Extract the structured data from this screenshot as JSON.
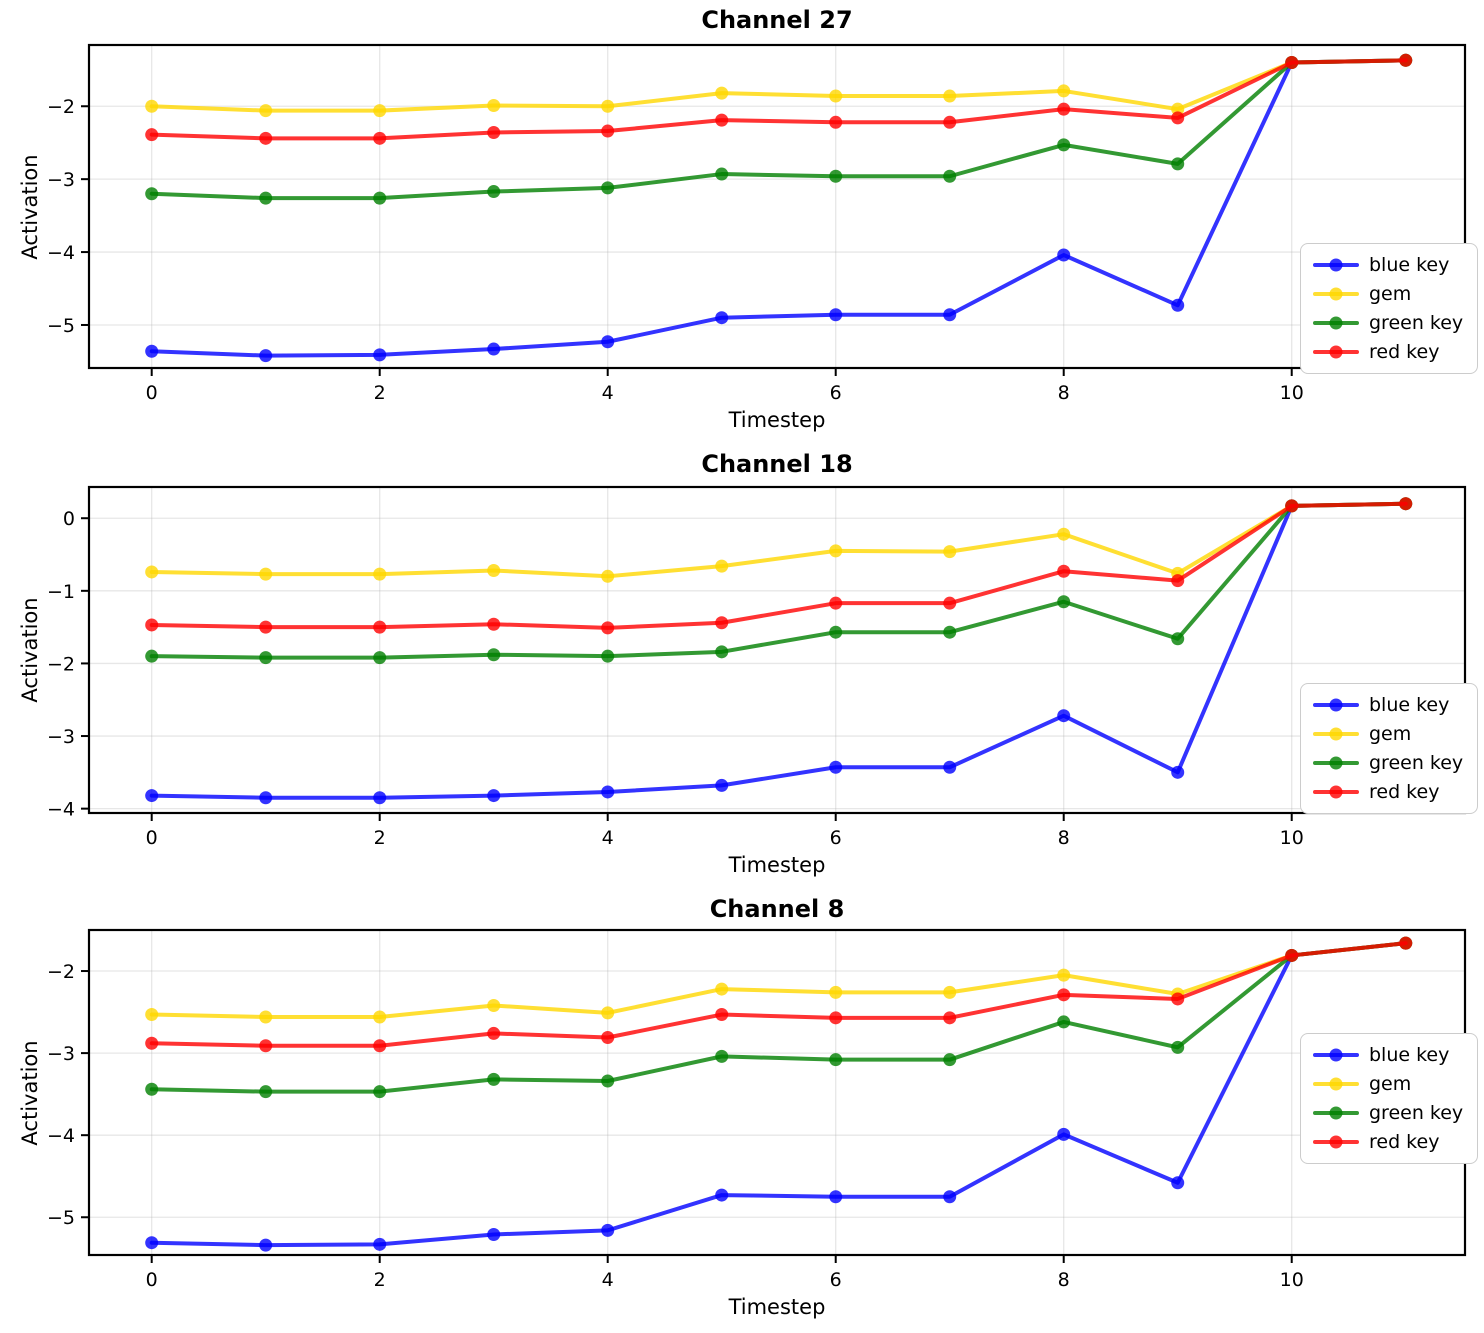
{
  "figure": {
    "background": "#ffffff",
    "text_color": "#000000",
    "grid_color": "#b0b0b0",
    "spine_color": "#000000"
  },
  "chart_data": [
    {
      "type": "line",
      "title": "Channel 27",
      "xlabel": "Timestep",
      "ylabel": "Activation",
      "x": [
        0,
        1,
        2,
        3,
        4,
        5,
        6,
        7,
        8,
        9,
        10,
        11
      ],
      "series": [
        {
          "name": "blue key",
          "color": "#0000ff",
          "values": [
            -5.36,
            -5.42,
            -5.41,
            -5.33,
            -5.23,
            -4.9,
            -4.86,
            -4.86,
            -4.04,
            -4.73,
            -1.4,
            -1.37
          ]
        },
        {
          "name": "gem",
          "color": "#ffd700",
          "values": [
            -2.0,
            -2.06,
            -2.06,
            -1.99,
            -2.0,
            -1.82,
            -1.86,
            -1.86,
            -1.79,
            -2.04,
            -1.4,
            -1.37
          ]
        },
        {
          "name": "green key",
          "color": "#008000",
          "values": [
            -3.2,
            -3.26,
            -3.26,
            -3.17,
            -3.12,
            -2.93,
            -2.96,
            -2.96,
            -2.53,
            -2.79,
            -1.4,
            -1.37
          ]
        },
        {
          "name": "red key",
          "color": "#ff0000",
          "values": [
            -2.39,
            -2.44,
            -2.44,
            -2.36,
            -2.34,
            -2.19,
            -2.22,
            -2.22,
            -2.04,
            -2.16,
            -1.4,
            -1.37
          ]
        }
      ],
      "alpha": 0.8,
      "xticks": [
        0,
        2,
        4,
        6,
        8,
        10
      ],
      "yticks": [
        -5,
        -4,
        -3,
        -2
      ],
      "xlim": [
        -0.55,
        11.52
      ],
      "ylim": [
        -5.59,
        -1.16
      ],
      "grid": true,
      "legend_position": "lower right"
    },
    {
      "type": "line",
      "title": "Channel 18",
      "xlabel": "Timestep",
      "ylabel": "Activation",
      "x": [
        0,
        1,
        2,
        3,
        4,
        5,
        6,
        7,
        8,
        9,
        10,
        11
      ],
      "series": [
        {
          "name": "blue key",
          "color": "#0000ff",
          "values": [
            -3.82,
            -3.85,
            -3.85,
            -3.82,
            -3.77,
            -3.68,
            -3.43,
            -3.43,
            -2.72,
            -3.5,
            0.17,
            0.2
          ]
        },
        {
          "name": "gem",
          "color": "#ffd700",
          "values": [
            -0.74,
            -0.77,
            -0.77,
            -0.72,
            -0.8,
            -0.66,
            -0.45,
            -0.46,
            -0.22,
            -0.76,
            0.17,
            0.2
          ]
        },
        {
          "name": "green key",
          "color": "#008000",
          "values": [
            -1.9,
            -1.92,
            -1.92,
            -1.88,
            -1.9,
            -1.84,
            -1.57,
            -1.57,
            -1.15,
            -1.66,
            0.17,
            0.2
          ]
        },
        {
          "name": "red key",
          "color": "#ff0000",
          "values": [
            -1.47,
            -1.5,
            -1.5,
            -1.46,
            -1.51,
            -1.44,
            -1.17,
            -1.17,
            -0.73,
            -0.86,
            0.17,
            0.2
          ]
        }
      ],
      "alpha": 0.8,
      "xticks": [
        0,
        2,
        4,
        6,
        8,
        10
      ],
      "yticks": [
        -4,
        -3,
        -2,
        -1,
        0
      ],
      "xlim": [
        -0.55,
        11.52
      ],
      "ylim": [
        -4.06,
        0.43
      ],
      "grid": true,
      "legend_position": "lower right"
    },
    {
      "type": "line",
      "title": "Channel 8",
      "xlabel": "Timestep",
      "ylabel": "Activation",
      "x": [
        0,
        1,
        2,
        3,
        4,
        5,
        6,
        7,
        8,
        9,
        10,
        11
      ],
      "series": [
        {
          "name": "blue key",
          "color": "#0000ff",
          "values": [
            -5.31,
            -5.34,
            -5.33,
            -5.21,
            -5.16,
            -4.73,
            -4.75,
            -4.75,
            -3.99,
            -4.58,
            -1.81,
            -1.66
          ]
        },
        {
          "name": "gem",
          "color": "#ffd700",
          "values": [
            -2.53,
            -2.56,
            -2.56,
            -2.42,
            -2.51,
            -2.22,
            -2.26,
            -2.26,
            -2.05,
            -2.28,
            -1.81,
            -1.66
          ]
        },
        {
          "name": "green key",
          "color": "#008000",
          "values": [
            -3.44,
            -3.47,
            -3.47,
            -3.32,
            -3.34,
            -3.04,
            -3.08,
            -3.08,
            -2.62,
            -2.93,
            -1.81,
            -1.66
          ]
        },
        {
          "name": "red key",
          "color": "#ff0000",
          "values": [
            -2.88,
            -2.91,
            -2.91,
            -2.76,
            -2.81,
            -2.53,
            -2.57,
            -2.57,
            -2.29,
            -2.34,
            -1.81,
            -1.66
          ]
        }
      ],
      "alpha": 0.8,
      "xticks": [
        0,
        2,
        4,
        6,
        8,
        10
      ],
      "yticks": [
        -5,
        -4,
        -3,
        -2
      ],
      "xlim": [
        -0.55,
        11.52
      ],
      "ylim": [
        -5.46,
        -1.5
      ],
      "grid": true,
      "legend_position": "center right"
    }
  ]
}
